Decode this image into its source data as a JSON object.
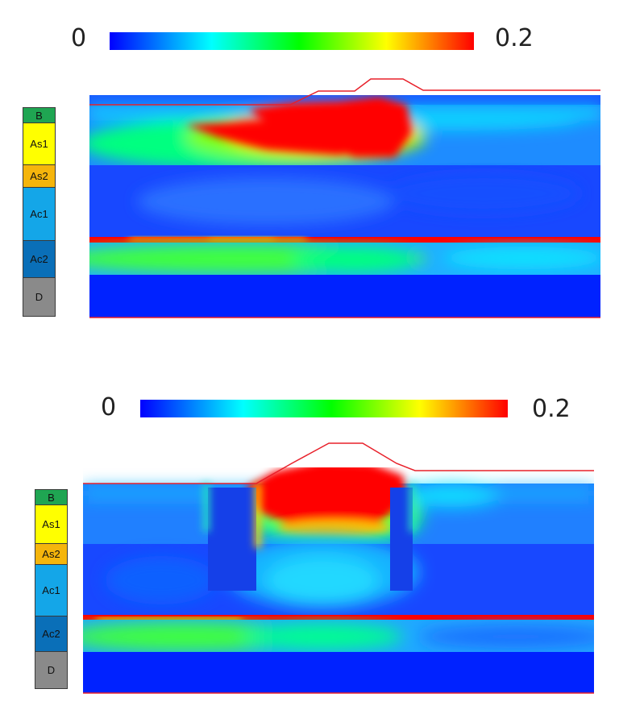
{
  "panels": [
    {
      "colorbar": {
        "min_label": "0",
        "max_label": "0.2"
      },
      "layers": [
        {
          "name": "B",
          "color": "#1fa552"
        },
        {
          "name": "As1",
          "color": "#ffff00"
        },
        {
          "name": "As2",
          "color": "#f5b50c"
        },
        {
          "name": "Ac1",
          "color": "#14a6e8"
        },
        {
          "name": "Ac2",
          "color": "#0a6fb8"
        },
        {
          "name": "D",
          "color": "#8a8a8a"
        }
      ]
    },
    {
      "colorbar": {
        "min_label": "0",
        "max_label": "0.2"
      },
      "layers": [
        {
          "name": "B",
          "color": "#1fa552"
        },
        {
          "name": "As1",
          "color": "#ffff00"
        },
        {
          "name": "As2",
          "color": "#f5b50c"
        },
        {
          "name": "Ac1",
          "color": "#14a6e8"
        },
        {
          "name": "Ac2",
          "color": "#0a6fb8"
        },
        {
          "name": "D",
          "color": "#8a8a8a"
        }
      ]
    }
  ],
  "colors": {
    "jet": [
      "#0000ff",
      "#0080ff",
      "#00ffff",
      "#00ff80",
      "#00ff00",
      "#80ff00",
      "#ffff00",
      "#ff8000",
      "#ff0000"
    ],
    "outline": "#e8202a"
  }
}
